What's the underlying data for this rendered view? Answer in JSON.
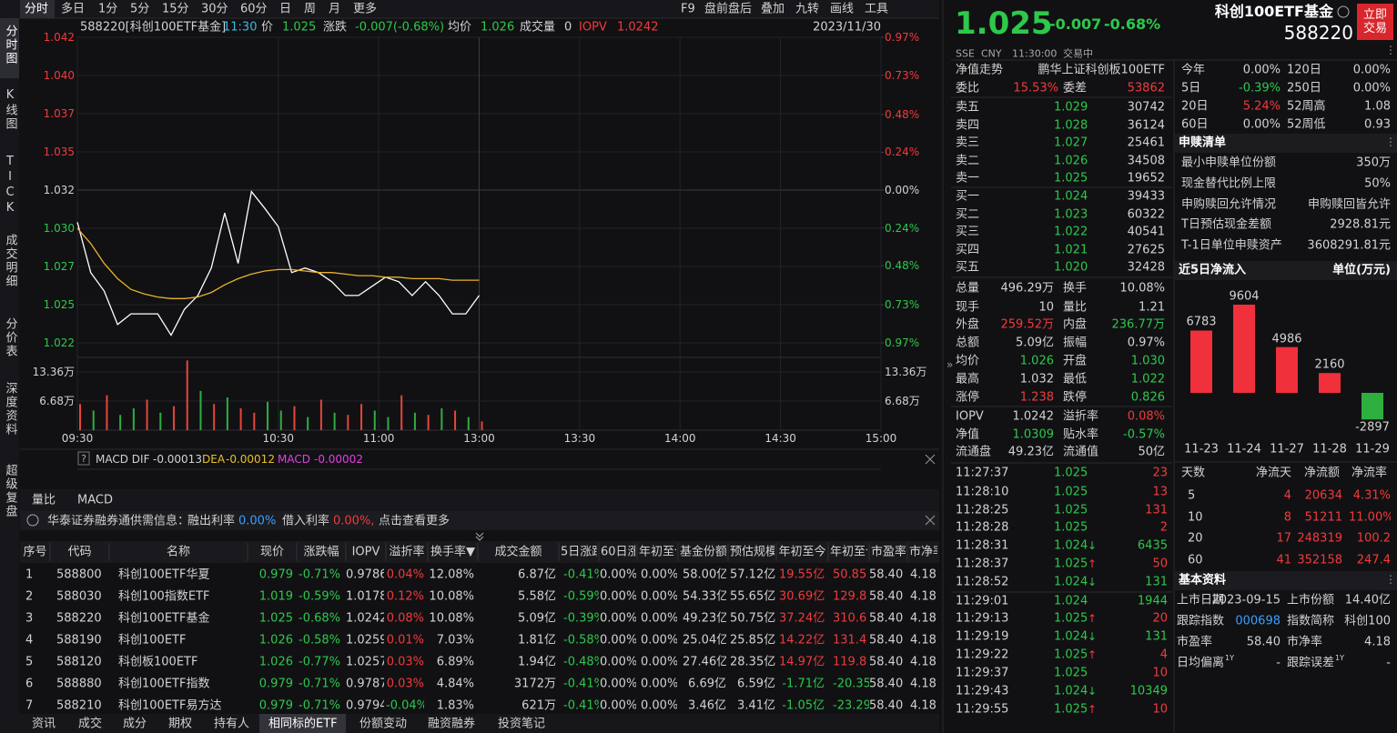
{
  "left_tabs": [
    "分时图",
    "K线图",
    "TICK",
    "成交明细",
    "分价表",
    "深度资料",
    "超级复盘"
  ],
  "toolbar": {
    "periods": [
      "分时",
      "多日",
      "1分",
      "5分",
      "15分",
      "30分",
      "60分",
      "日",
      "周",
      "月",
      "更多"
    ],
    "tools": [
      "F9",
      "盘前盘后",
      "叠加",
      "九转",
      "画线",
      "工具"
    ]
  },
  "chart_header": {
    "code_name": "588220[科创100ETF基金]",
    "time": "11:30",
    "price_label": "价",
    "price": "1.025",
    "change_label": "涨跌",
    "change": "-0.007(-0.68%)",
    "avg_label": "均价",
    "avg": "1.026",
    "volume_label": "成交量",
    "volume": "0",
    "iopv_label": "IOPV",
    "iopv": "1.0242",
    "date": "2023/11/30"
  },
  "chart_data": [
    {
      "type": "line",
      "x": [
        "09:30",
        "09:34",
        "09:38",
        "09:42",
        "09:46",
        "09:50",
        "09:54",
        "09:58",
        "10:02",
        "10:06",
        "10:10",
        "10:14",
        "10:18",
        "10:22",
        "10:26",
        "10:30",
        "10:34",
        "10:38",
        "10:42",
        "10:46",
        "10:50",
        "10:54",
        "10:58",
        "11:02",
        "11:06",
        "11:10",
        "11:14",
        "11:18",
        "11:22",
        "11:26",
        "11:30"
      ],
      "series": [
        {
          "color": "#ffffff",
          "values": [
            1.0299,
            1.0266,
            1.0254,
            1.0232,
            1.0239,
            1.0239,
            1.0239,
            1.0225,
            1.0242,
            1.0251,
            1.0269,
            1.0305,
            1.0272,
            1.0319,
            1.0308,
            1.0296,
            1.0266,
            1.0269,
            1.0266,
            1.026,
            1.0251,
            1.0251,
            1.0257,
            1.0263,
            1.026,
            1.0251,
            1.026,
            1.0251,
            1.0239,
            1.0239,
            1.0251
          ]
        },
        {
          "color": "#e8b32a",
          "values": [
            1.0295,
            1.0285,
            1.0272,
            1.0262,
            1.0255,
            1.0252,
            1.025,
            1.0249,
            1.0249,
            1.025,
            1.0253,
            1.0258,
            1.0262,
            1.0265,
            1.0267,
            1.0268,
            1.0268,
            1.0267,
            1.0266,
            1.0266,
            1.0265,
            1.0264,
            1.0264,
            1.0263,
            1.0263,
            1.0262,
            1.0262,
            1.0262,
            1.0261,
            1.0261,
            1.0261
          ]
        }
      ],
      "xlim": [
        "09:30",
        "15:00"
      ],
      "xticks": [
        "09:30",
        "10:30",
        "11:00",
        "13:00",
        "13:30",
        "14:00",
        "14:30",
        "15:00"
      ],
      "ylim": [
        1.022,
        1.042
      ],
      "yticks": [
        {
          "value": 1.042,
          "label": "1.042"
        },
        {
          "value": 1.0395,
          "label": "1.040"
        },
        {
          "value": 1.037,
          "label": "1.037"
        },
        {
          "value": 1.0345,
          "label": "1.035"
        },
        {
          "value": 1.032,
          "label": "1.032"
        },
        {
          "value": 1.0295,
          "label": "1.030"
        },
        {
          "value": 1.027,
          "label": "1.027"
        },
        {
          "value": 1.0245,
          "label": "1.025"
        },
        {
          "value": 1.022,
          "label": "1.022"
        }
      ],
      "y2lim": [
        -0.97,
        0.97
      ],
      "y2ticks": [
        {
          "value": 0.97,
          "label": "0.97%"
        },
        {
          "value": 0.73,
          "label": "0.73%"
        },
        {
          "value": 0.48,
          "label": "0.48%"
        },
        {
          "value": 0.24,
          "label": "0.24%"
        },
        {
          "value": 0,
          "label": "0.00%"
        },
        {
          "value": -0.24,
          "label": "0.24%"
        },
        {
          "value": -0.48,
          "label": "0.48%"
        },
        {
          "value": -0.73,
          "label": "0.73%"
        },
        {
          "value": -0.97,
          "label": "0.97%"
        }
      ],
      "grid": true
    },
    {
      "type": "bar",
      "x": [
        "09:30",
        "09:34",
        "09:38",
        "09:42",
        "09:46",
        "09:50",
        "09:54",
        "09:58",
        "10:02",
        "10:06",
        "10:10",
        "10:14",
        "10:18",
        "10:22",
        "10:26",
        "10:30",
        "10:34",
        "10:38",
        "10:42",
        "10:46",
        "10:50",
        "10:54",
        "10:58",
        "11:02",
        "11:06",
        "11:10",
        "11:14",
        "11:18",
        "11:22",
        "11:26",
        "11:30"
      ],
      "values": [
        60000,
        45000,
        80000,
        35000,
        50000,
        70000,
        40000,
        55000,
        160000,
        90000,
        60000,
        75000,
        50000,
        40000,
        65000,
        45000,
        55000,
        30000,
        70000,
        40000,
        35000,
        60000,
        45000,
        30000,
        80000,
        40000,
        35000,
        50000,
        45000,
        30000,
        20000
      ],
      "colors": [
        "#e8443a",
        "#2fae40",
        "#e8443a",
        "#2fae40",
        "#2fae40",
        "#e8443a",
        "#2fae40",
        "#e8443a",
        "#e8443a",
        "#2fae40",
        "#e8443a",
        "#2fae40",
        "#e8443a",
        "#e8443a",
        "#2fae40",
        "#2fae40",
        "#e8443a",
        "#2fae40",
        "#e8443a",
        "#2fae40",
        "#e8443a",
        "#e8443a",
        "#2fae40",
        "#2fae40",
        "#e8443a",
        "#2fae40",
        "#e8443a",
        "#2fae40",
        "#e8443a",
        "#2fae40",
        "#e8443a"
      ],
      "ylim": [
        0,
        162800
      ],
      "yticks": [
        {
          "value": 133600,
          "label": "13.36万"
        },
        {
          "value": 66800,
          "label": "6.68万"
        }
      ]
    },
    {
      "type": "bar",
      "title": "近5日净流入",
      "unit": "单位(万元)",
      "categories": [
        "11-23",
        "11-24",
        "11-27",
        "11-28",
        "11-29"
      ],
      "values": [
        6783,
        9604,
        4986,
        2160,
        -2897
      ],
      "color": "#f0303a",
      "negative_color": "#2fae40"
    }
  ],
  "macd_header": {
    "label": "MACD DIF",
    "dif": "-0.00013",
    "dea_label": "DEA",
    "dea": "-0.00012",
    "macd_label": "MACD",
    "macd": "-0.00002"
  },
  "sub_tabs": [
    "量比",
    "MACD"
  ],
  "notice": {
    "title": "华泰证券融券通供需信息：",
    "rate1_label": "融出利率",
    "rate1": "0.00%",
    "rate2_label": "借入利率",
    "rate2": "0.00%,",
    "more": "点击查看更多"
  },
  "table": {
    "header": [
      "序号",
      "代码",
      "名称",
      "现价",
      "涨跌幅",
      "IOPV",
      "溢折率",
      "换手率▼",
      "成交金额",
      "5日涨跌",
      "60日涨跌",
      "年初至今",
      "基金份额",
      "预估规模",
      "年初至今",
      "年初至今",
      "市盈率",
      "市净率"
    ],
    "rows": [
      [
        "1",
        "588800",
        "科创100ETF华夏",
        "0.979",
        "-0.71%",
        "0.9786",
        "0.04%",
        "12.08%",
        "6.87亿",
        "-0.41%",
        "0.00%",
        "0.00%",
        "58.00亿",
        "57.12亿",
        "19.55亿",
        "50.85",
        "58.40",
        "4.18"
      ],
      [
        "2",
        "588030",
        "科创100指数ETF",
        "1.019",
        "-0.59%",
        "1.0178",
        "0.12%",
        "10.08%",
        "5.58亿",
        "-0.59%",
        "0.00%",
        "0.00%",
        "54.33亿",
        "55.65亿",
        "30.69亿",
        "129.8",
        "58.40",
        "4.18"
      ],
      [
        "3",
        "588220",
        "科创100ETF基金",
        "1.025",
        "-0.68%",
        "1.0242",
        "0.08%",
        "10.08%",
        "5.09亿",
        "-0.39%",
        "0.00%",
        "0.00%",
        "49.23亿",
        "50.75亿",
        "37.24亿",
        "310.6",
        "58.40",
        "4.18"
      ],
      [
        "4",
        "588190",
        "科创100ETF",
        "1.026",
        "-0.58%",
        "1.0259",
        "0.01%",
        "7.03%",
        "1.81亿",
        "-0.58%",
        "0.00%",
        "0.00%",
        "25.04亿",
        "25.85亿",
        "14.22亿",
        "131.4",
        "58.40",
        "4.18"
      ],
      [
        "5",
        "588120",
        "科创板100ETF",
        "1.026",
        "-0.77%",
        "1.0257",
        "0.03%",
        "6.89%",
        "1.94亿",
        "-0.48%",
        "0.00%",
        "0.00%",
        "27.46亿",
        "28.35亿",
        "14.97亿",
        "119.8",
        "58.40",
        "4.18"
      ],
      [
        "6",
        "588880",
        "科创100ETF指数",
        "0.979",
        "-0.71%",
        "0.9787",
        "0.03%",
        "4.84%",
        "3172万",
        "-0.41%",
        "0.00%",
        "0.00%",
        "6.69亿",
        "6.59亿",
        "-1.71亿",
        "-20.35",
        "58.40",
        "4.18"
      ],
      [
        "7",
        "588210",
        "科创100ETF易方达",
        "0.979",
        "-0.71%",
        "0.9794",
        "-0.04%",
        "1.83%",
        "621万",
        "-0.41%",
        "0.00%",
        "0.00%",
        "3.46亿",
        "3.41亿",
        "-1.05亿",
        "-23.29",
        "58.40",
        "4.18"
      ]
    ]
  },
  "bottom_tabs": [
    "资讯",
    "成交",
    "成分",
    "期权",
    "持有人",
    "相同标的ETF",
    "份额变动",
    "融资融券",
    "投资笔记"
  ],
  "quote": {
    "price": "1.025",
    "change": "-0.007",
    "change_pct": "-0.68%",
    "exchange": "SSE",
    "currency": "CNY",
    "time": "11:30:00",
    "status": "交易中",
    "name": "科创100ETF基金",
    "code": "588220",
    "trade_button": "立即交易"
  },
  "nav": {
    "label": "净值走势",
    "fund": "鹏华上证科创板100ETF"
  },
  "ratio": {
    "label": "委比",
    "value": "15.53%",
    "diff_label": "委差",
    "diff": "53862"
  },
  "order_book": {
    "sells": [
      {
        "label": "卖五",
        "price": "1.029",
        "volume": "30742"
      },
      {
        "label": "卖四",
        "price": "1.028",
        "volume": "36124"
      },
      {
        "label": "卖三",
        "price": "1.027",
        "volume": "25461"
      },
      {
        "label": "卖二",
        "price": "1.026",
        "volume": "34508"
      },
      {
        "label": "卖一",
        "price": "1.025",
        "volume": "19652"
      }
    ],
    "buys": [
      {
        "label": "买一",
        "price": "1.024",
        "volume": "39433"
      },
      {
        "label": "买二",
        "price": "1.023",
        "volume": "60322"
      },
      {
        "label": "买三",
        "price": "1.022",
        "volume": "40541"
      },
      {
        "label": "买四",
        "price": "1.021",
        "volume": "27625"
      },
      {
        "label": "买五",
        "price": "1.020",
        "volume": "32428"
      }
    ]
  },
  "stats": [
    [
      {
        "label": "总量",
        "value": "496.29万",
        "color": "#d2d2d2"
      },
      {
        "label": "换手",
        "value": "10.08%",
        "color": "#d2d2d2"
      }
    ],
    [
      {
        "label": "现手",
        "value": "10",
        "color": "#d2d2d2"
      },
      {
        "label": "量比",
        "value": "1.21",
        "color": "#d2d2d2"
      }
    ],
    [
      {
        "label": "外盘",
        "value": "259.52万",
        "color": "#f23a3a"
      },
      {
        "label": "内盘",
        "value": "236.77万",
        "color": "#2ec84a"
      }
    ],
    [
      {
        "label": "总额",
        "value": "5.09亿",
        "color": "#d2d2d2"
      },
      {
        "label": "振幅",
        "value": "0.97%",
        "color": "#d2d2d2"
      }
    ],
    [
      {
        "label": "均价",
        "value": "1.026",
        "color": "#2ec84a"
      },
      {
        "label": "开盘",
        "value": "1.030",
        "color": "#2ec84a"
      }
    ],
    [
      {
        "label": "最高",
        "value": "1.032",
        "color": "#d2d2d2"
      },
      {
        "label": "最低",
        "value": "1.022",
        "color": "#2ec84a"
      }
    ],
    [
      {
        "label": "涨停",
        "value": "1.238",
        "color": "#f23a3a"
      },
      {
        "label": "跌停",
        "value": "0.826",
        "color": "#2ec84a"
      }
    ],
    [
      {
        "label": "IOPV",
        "value": "1.0242",
        "color": "#d2d2d2"
      },
      {
        "label": "溢折率",
        "value": "0.08%",
        "color": "#f23a3a"
      }
    ],
    [
      {
        "label": "净值",
        "value": "1.0309",
        "color": "#2ec84a"
      },
      {
        "label": "贴水率",
        "value": "-0.57%",
        "color": "#2ec84a"
      }
    ],
    [
      {
        "label": "流通盘",
        "value": "49.23亿",
        "color": "#d2d2d2"
      },
      {
        "label": "流通值",
        "value": "50亿",
        "color": "#d2d2d2"
      }
    ]
  ],
  "trades": [
    {
      "time": "11:27:37",
      "price": "1.025",
      "volume": "23",
      "color": "#f23a3a"
    },
    {
      "time": "11:28:10",
      "price": "1.025",
      "volume": "13",
      "color": "#f23a3a"
    },
    {
      "time": "11:28:25",
      "price": "1.025",
      "volume": "131",
      "color": "#f23a3a"
    },
    {
      "time": "11:28:28",
      "price": "1.025",
      "volume": "2",
      "color": "#f23a3a"
    },
    {
      "time": "11:28:31",
      "price": "1.024",
      "arrow": "↓",
      "volume": "6435",
      "color": "#2ec84a"
    },
    {
      "time": "11:28:37",
      "price": "1.025",
      "arrow": "↑",
      "volume": "50",
      "color": "#f23a3a"
    },
    {
      "time": "11:28:52",
      "price": "1.024",
      "arrow": "↓",
      "volume": "131",
      "color": "#2ec84a"
    },
    {
      "time": "11:29:01",
      "price": "1.024",
      "volume": "1944",
      "color": "#2ec84a"
    },
    {
      "time": "11:29:13",
      "price": "1.025",
      "arrow": "↑",
      "volume": "20",
      "color": "#f23a3a"
    },
    {
      "time": "11:29:19",
      "price": "1.024",
      "arrow": "↓",
      "volume": "131",
      "color": "#2ec84a"
    },
    {
      "time": "11:29:22",
      "price": "1.025",
      "arrow": "↑",
      "volume": "4",
      "color": "#f23a3a"
    },
    {
      "time": "11:29:37",
      "price": "1.025",
      "volume": "10",
      "color": "#f23a3a"
    },
    {
      "time": "11:29:43",
      "price": "1.024",
      "arrow": "↓",
      "volume": "10349",
      "color": "#2ec84a"
    },
    {
      "time": "11:29:55",
      "price": "1.025",
      "arrow": "↑",
      "volume": "10",
      "color": "#f23a3a"
    }
  ],
  "performance": [
    [
      "今年",
      "0.00%",
      "120日",
      "0.00%"
    ],
    [
      "5日",
      "-0.39%",
      "250日",
      "0.00%"
    ],
    [
      "20日",
      "5.24%",
      "52周高",
      "1.08"
    ],
    [
      "60日",
      "0.00%",
      "52周低",
      "0.93"
    ]
  ],
  "creation": {
    "title": "申赎清单",
    "rows": [
      [
        "最小申赎单位份额",
        "350万"
      ],
      [
        "现金替代比例上限",
        "50%"
      ],
      [
        "申购赎回允许情况",
        "申购赎回皆允许"
      ],
      [
        "T日预估现金差额",
        "2928.81元"
      ],
      [
        "T-1日单位申赎资产",
        "3608291.81元"
      ]
    ]
  },
  "flows": {
    "header": [
      "天数",
      "净流天",
      "净流额",
      "净流率"
    ],
    "rows": [
      [
        "5",
        "4",
        "20634",
        "4.31%"
      ],
      [
        "10",
        "8",
        "51211",
        "11.00%"
      ],
      [
        "20",
        "17",
        "248319",
        "100.2"
      ],
      [
        "60",
        "41",
        "352158",
        "247.4"
      ]
    ]
  },
  "basic": {
    "title": "基本资料",
    "rows": [
      [
        {
          "label": "上市日期",
          "value": "2023-09-15"
        },
        {
          "label": "上市份额",
          "value": "14.40亿"
        }
      ],
      [
        {
          "label": "跟踪指数",
          "value": "000698"
        },
        {
          "label": "指数简称",
          "value": "科创100"
        }
      ],
      [
        {
          "label": "市盈率",
          "value": "58.40"
        },
        {
          "label": "市净率",
          "value": "4.18"
        }
      ],
      [
        {
          "label": "日均偏离",
          "sup": "1Y",
          "value": "-"
        },
        {
          "label": "跟踪误差",
          "sup": "1Y",
          "value": "-"
        }
      ]
    ]
  }
}
